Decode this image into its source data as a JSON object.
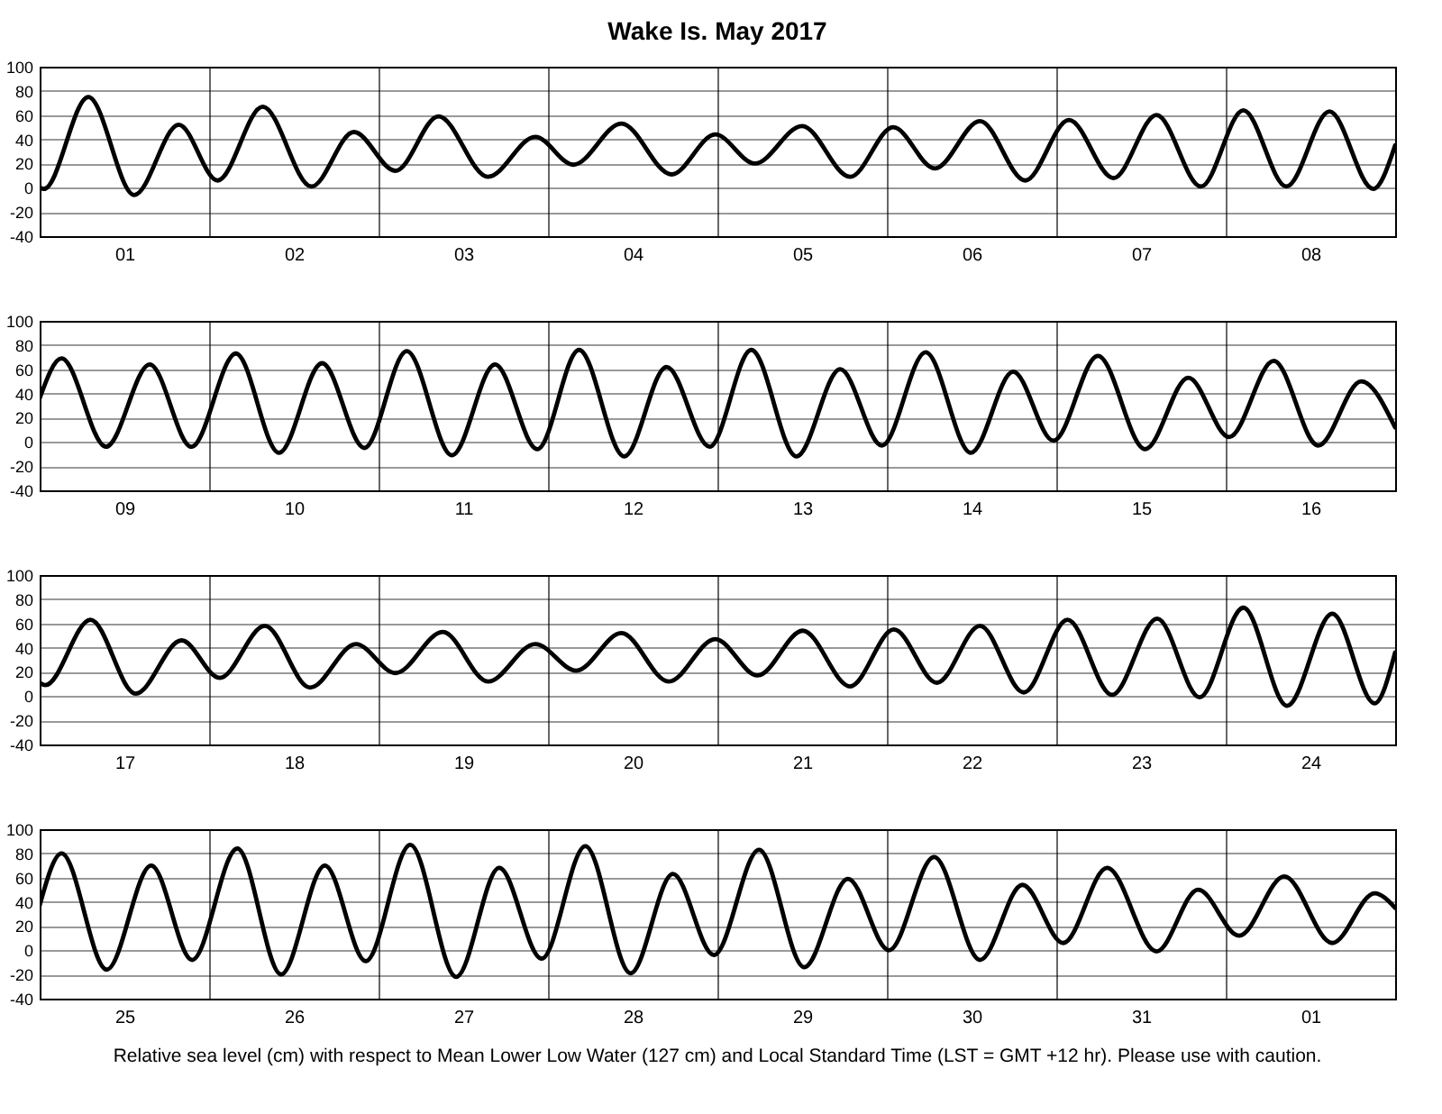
{
  "chart_data": [
    {
      "type": "line",
      "title": "Wake Is.          May   2017",
      "xlim": [
        "2017-05-01T00:00",
        "2017-05-09T00:00"
      ],
      "ylim": [
        -40,
        100
      ],
      "yticks": [
        -40,
        -20,
        0,
        20,
        40,
        60,
        80,
        100
      ],
      "grid": true,
      "marker": "none",
      "xticks": [
        {
          "value": "2017-05-01T00:00",
          "label": null
        },
        {
          "value": "2017-05-01T12:00",
          "label": "01"
        },
        {
          "value": "2017-05-02T00:00",
          "label": null
        },
        {
          "value": "2017-05-02T12:00",
          "label": "02"
        },
        {
          "value": "2017-05-03T00:00",
          "label": null
        },
        {
          "value": "2017-05-03T12:00",
          "label": "03"
        },
        {
          "value": "2017-05-04T00:00",
          "label": null
        },
        {
          "value": "2017-05-04T12:00",
          "label": "04"
        },
        {
          "value": "2017-05-05T00:00",
          "label": null
        },
        {
          "value": "2017-05-05T12:00",
          "label": "05"
        },
        {
          "value": "2017-05-06T00:00",
          "label": null
        },
        {
          "value": "2017-05-06T12:00",
          "label": "06"
        },
        {
          "value": "2017-05-07T00:00",
          "label": null
        },
        {
          "value": "2017-05-07T12:00",
          "label": "07"
        },
        {
          "value": "2017-05-08T00:00",
          "label": null
        },
        {
          "value": "2017-05-08T12:00",
          "label": "08"
        },
        {
          "value": "2017-05-09T00:00",
          "label": null
        }
      ],
      "series": [
        {
          "color": "#000000",
          "x": [
            "2017-05-01T00:00",
            "2017-05-01T00:36",
            "2017-05-01T06:54",
            "2017-05-01T13:24",
            "2017-05-01T19:42",
            "2017-05-02T01:12",
            "2017-05-02T07:36",
            "2017-05-02T14:30",
            "2017-05-02T20:30",
            "2017-05-03T02:24",
            "2017-05-03T08:30",
            "2017-05-03T15:30",
            "2017-05-03T22:12",
            "2017-05-04T03:36",
            "2017-05-04T10:24",
            "2017-05-04T17:30",
            "2017-05-04T23:42",
            "2017-05-05T05:18",
            "2017-05-05T12:00",
            "2017-05-05T18:48",
            "2017-05-06T00:54",
            "2017-05-06T06:48",
            "2017-05-06T13:12",
            "2017-05-06T19:36",
            "2017-05-07T01:48",
            "2017-05-07T08:06",
            "2017-05-07T14:12",
            "2017-05-07T20:30",
            "2017-05-08T02:30",
            "2017-05-08T08:36",
            "2017-05-08T14:42",
            "2017-05-08T20:54",
            "2017-05-09T00:00"
          ],
          "values": [
            0,
            -1,
            75,
            -6,
            52,
            6,
            67,
            1,
            46,
            14,
            59,
            9,
            42,
            19,
            53,
            11,
            44,
            20,
            51,
            9,
            50,
            16,
            55,
            6,
            56,
            8,
            60,
            1,
            64,
            1,
            63,
            -1,
            35
          ]
        }
      ]
    },
    {
      "type": "line",
      "xlim": [
        "2017-05-09T00:00",
        "2017-05-17T00:00"
      ],
      "ylim": [
        -40,
        100
      ],
      "yticks": [
        -40,
        -20,
        0,
        20,
        40,
        60,
        80,
        100
      ],
      "grid": true,
      "marker": "none",
      "xticks": [
        {
          "value": "2017-05-09T00:00",
          "label": null
        },
        {
          "value": "2017-05-09T12:00",
          "label": "09"
        },
        {
          "value": "2017-05-10T00:00",
          "label": null
        },
        {
          "value": "2017-05-10T12:00",
          "label": "10"
        },
        {
          "value": "2017-05-11T00:00",
          "label": null
        },
        {
          "value": "2017-05-11T12:00",
          "label": "11"
        },
        {
          "value": "2017-05-12T00:00",
          "label": null
        },
        {
          "value": "2017-05-12T12:00",
          "label": "12"
        },
        {
          "value": "2017-05-13T00:00",
          "label": null
        },
        {
          "value": "2017-05-13T12:00",
          "label": "13"
        },
        {
          "value": "2017-05-14T00:00",
          "label": null
        },
        {
          "value": "2017-05-14T12:00",
          "label": "14"
        },
        {
          "value": "2017-05-15T00:00",
          "label": null
        },
        {
          "value": "2017-05-15T12:00",
          "label": "15"
        },
        {
          "value": "2017-05-16T00:00",
          "label": null
        },
        {
          "value": "2017-05-16T12:00",
          "label": "16"
        },
        {
          "value": "2017-05-17T00:00",
          "label": null
        }
      ],
      "series": [
        {
          "color": "#000000",
          "x": [
            "2017-05-09T00:00",
            "2017-05-09T03:06",
            "2017-05-09T09:24",
            "2017-05-09T15:36",
            "2017-05-09T21:30",
            "2017-05-10T03:48",
            "2017-05-10T09:54",
            "2017-05-10T16:00",
            "2017-05-10T22:00",
            "2017-05-11T04:00",
            "2017-05-11T10:24",
            "2017-05-11T16:30",
            "2017-05-11T22:30",
            "2017-05-12T04:24",
            "2017-05-12T10:48",
            "2017-05-12T16:48",
            "2017-05-12T22:54",
            "2017-05-13T04:48",
            "2017-05-13T11:12",
            "2017-05-13T17:24",
            "2017-05-13T23:18",
            "2017-05-14T05:30",
            "2017-05-14T11:54",
            "2017-05-14T17:54",
            "2017-05-14T23:36",
            "2017-05-15T05:54",
            "2017-05-15T12:36",
            "2017-05-15T18:42",
            "2017-05-16T00:30",
            "2017-05-16T06:48",
            "2017-05-16T13:06",
            "2017-05-16T19:12",
            "2017-05-17T00:00"
          ],
          "values": [
            36,
            69,
            -4,
            64,
            -4,
            73,
            -9,
            65,
            -5,
            75,
            -11,
            64,
            -6,
            76,
            -12,
            62,
            -4,
            76,
            -12,
            60,
            -3,
            74,
            -9,
            58,
            1,
            71,
            -6,
            53,
            4,
            67,
            -3,
            50,
            12
          ]
        }
      ]
    },
    {
      "type": "line",
      "xlim": [
        "2017-05-17T00:00",
        "2017-05-25T00:00"
      ],
      "ylim": [
        -40,
        100
      ],
      "yticks": [
        -40,
        -20,
        0,
        20,
        40,
        60,
        80,
        100
      ],
      "grid": true,
      "marker": "none",
      "xticks": [
        {
          "value": "2017-05-17T00:00",
          "label": null
        },
        {
          "value": "2017-05-17T12:00",
          "label": "17"
        },
        {
          "value": "2017-05-18T00:00",
          "label": null
        },
        {
          "value": "2017-05-18T12:00",
          "label": "18"
        },
        {
          "value": "2017-05-19T00:00",
          "label": null
        },
        {
          "value": "2017-05-19T12:00",
          "label": "19"
        },
        {
          "value": "2017-05-20T00:00",
          "label": null
        },
        {
          "value": "2017-05-20T12:00",
          "label": "20"
        },
        {
          "value": "2017-05-21T00:00",
          "label": null
        },
        {
          "value": "2017-05-21T12:00",
          "label": "21"
        },
        {
          "value": "2017-05-22T00:00",
          "label": null
        },
        {
          "value": "2017-05-22T12:00",
          "label": "22"
        },
        {
          "value": "2017-05-23T00:00",
          "label": null
        },
        {
          "value": "2017-05-23T12:00",
          "label": "23"
        },
        {
          "value": "2017-05-24T00:00",
          "label": null
        },
        {
          "value": "2017-05-24T12:00",
          "label": "24"
        },
        {
          "value": "2017-05-25T00:00",
          "label": null
        }
      ],
      "series": [
        {
          "color": "#000000",
          "x": [
            "2017-05-17T00:00",
            "2017-05-17T00:48",
            "2017-05-17T07:12",
            "2017-05-17T13:36",
            "2017-05-17T20:06",
            "2017-05-18T01:30",
            "2017-05-18T07:54",
            "2017-05-18T14:18",
            "2017-05-18T20:48",
            "2017-05-19T02:24",
            "2017-05-19T09:06",
            "2017-05-19T15:30",
            "2017-05-19T22:12",
            "2017-05-20T04:00",
            "2017-05-20T10:24",
            "2017-05-20T17:06",
            "2017-05-20T23:42",
            "2017-05-21T05:42",
            "2017-05-21T12:06",
            "2017-05-21T18:48",
            "2017-05-22T01:00",
            "2017-05-22T07:06",
            "2017-05-22T13:12",
            "2017-05-22T19:24",
            "2017-05-23T01:36",
            "2017-05-23T07:54",
            "2017-05-23T14:18",
            "2017-05-23T20:18",
            "2017-05-24T02:30",
            "2017-05-24T08:42",
            "2017-05-24T15:06",
            "2017-05-24T21:06",
            "2017-05-25T00:00"
          ],
          "values": [
            11,
            9,
            63,
            2,
            46,
            15,
            58,
            7,
            43,
            19,
            53,
            12,
            43,
            21,
            52,
            12,
            47,
            17,
            54,
            8,
            55,
            11,
            58,
            3,
            63,
            1,
            64,
            -1,
            73,
            -8,
            68,
            -6,
            36
          ]
        }
      ]
    },
    {
      "type": "line",
      "xlim": [
        "2017-05-25T00:00",
        "2017-06-02T00:00"
      ],
      "ylim": [
        -40,
        100
      ],
      "yticks": [
        -40,
        -20,
        0,
        20,
        40,
        60,
        80,
        100
      ],
      "grid": true,
      "marker": "none",
      "annotations": [
        "Relative sea level (cm) with respect to Mean Lower Low Water (127 cm) and Local Standard Time (LST = GMT +12 hr). Please use with caution."
      ],
      "xticks": [
        {
          "value": "2017-05-25T00:00",
          "label": null
        },
        {
          "value": "2017-05-25T12:00",
          "label": "25"
        },
        {
          "value": "2017-05-26T00:00",
          "label": null
        },
        {
          "value": "2017-05-26T12:00",
          "label": "26"
        },
        {
          "value": "2017-05-27T00:00",
          "label": null
        },
        {
          "value": "2017-05-27T12:00",
          "label": "27"
        },
        {
          "value": "2017-05-28T00:00",
          "label": null
        },
        {
          "value": "2017-05-28T12:00",
          "label": "28"
        },
        {
          "value": "2017-05-29T00:00",
          "label": null
        },
        {
          "value": "2017-05-29T12:00",
          "label": "29"
        },
        {
          "value": "2017-05-30T00:00",
          "label": null
        },
        {
          "value": "2017-05-30T12:00",
          "label": "30"
        },
        {
          "value": "2017-05-31T00:00",
          "label": null
        },
        {
          "value": "2017-05-31T12:00",
          "label": "31"
        },
        {
          "value": "2017-06-01T00:00",
          "label": null
        },
        {
          "value": "2017-06-01T12:00",
          "label": "01"
        },
        {
          "value": "2017-06-02T00:00",
          "label": null
        }
      ],
      "series": [
        {
          "color": "#000000",
          "x": [
            "2017-05-25T00:00",
            "2017-05-25T03:06",
            "2017-05-25T09:30",
            "2017-05-25T15:48",
            "2017-05-25T21:36",
            "2017-05-26T04:00",
            "2017-05-26T10:12",
            "2017-05-26T16:24",
            "2017-05-26T22:12",
            "2017-05-27T04:30",
            "2017-05-27T11:00",
            "2017-05-27T17:06",
            "2017-05-27T23:06",
            "2017-05-28T05:18",
            "2017-05-28T11:42",
            "2017-05-28T17:42",
            "2017-05-28T23:30",
            "2017-05-29T05:54",
            "2017-05-29T12:18",
            "2017-05-29T18:30",
            "2017-05-30T00:18",
            "2017-05-30T06:42",
            "2017-05-30T13:12",
            "2017-05-30T19:12",
            "2017-05-31T01:00",
            "2017-05-31T07:12",
            "2017-05-31T14:12",
            "2017-05-31T20:06",
            "2017-06-01T01:54",
            "2017-06-01T08:18",
            "2017-06-01T15:06",
            "2017-06-01T21:06",
            "2017-06-02T00:00"
          ],
          "values": [
            37,
            80,
            -16,
            70,
            -8,
            84,
            -20,
            70,
            -9,
            87,
            -22,
            68,
            -7,
            86,
            -19,
            63,
            -4,
            83,
            -14,
            59,
            0,
            77,
            -8,
            54,
            6,
            68,
            -1,
            50,
            12,
            61,
            6,
            47,
            35
          ]
        }
      ]
    }
  ]
}
